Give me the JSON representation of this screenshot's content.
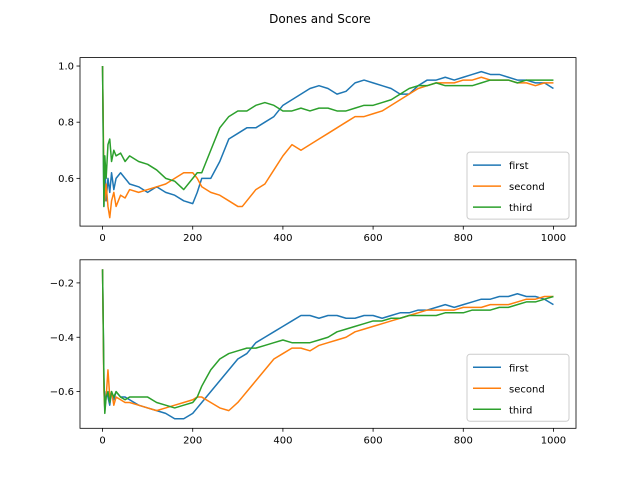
{
  "figure": {
    "suptitle": "Dones and Score",
    "colors": {
      "first": "#1f77b4",
      "second": "#ff7f0e",
      "third": "#2ca02c"
    }
  },
  "chart_data": [
    {
      "type": "line",
      "title": "",
      "xlabel": "",
      "ylabel": "",
      "xlim": [
        -50,
        1050
      ],
      "ylim": [
        0.43,
        1.03
      ],
      "xticks": [
        0,
        200,
        400,
        600,
        800,
        1000
      ],
      "yticks": [
        0.6,
        0.8,
        1.0
      ],
      "xtick_labels": [
        "0",
        "200",
        "400",
        "600",
        "800",
        "1000"
      ],
      "ytick_labels": [
        "0.6",
        "0.8",
        "1.0"
      ],
      "grid": false,
      "legend": "lower-right",
      "series": [
        {
          "name": "first",
          "color": "#1f77b4",
          "x": [
            0,
            3,
            5,
            8,
            12,
            16,
            20,
            25,
            30,
            40,
            50,
            60,
            80,
            100,
            120,
            140,
            160,
            180,
            200,
            210,
            220,
            240,
            260,
            280,
            300,
            320,
            340,
            360,
            380,
            400,
            420,
            440,
            460,
            480,
            500,
            520,
            540,
            560,
            580,
            600,
            620,
            640,
            660,
            680,
            700,
            720,
            740,
            760,
            780,
            800,
            820,
            840,
            860,
            880,
            900,
            920,
            940,
            960,
            980,
            1000
          ],
          "y": [
            1.0,
            0.5,
            0.66,
            0.52,
            0.6,
            0.55,
            0.62,
            0.56,
            0.6,
            0.62,
            0.6,
            0.58,
            0.57,
            0.55,
            0.57,
            0.55,
            0.54,
            0.52,
            0.51,
            0.55,
            0.6,
            0.6,
            0.66,
            0.74,
            0.76,
            0.78,
            0.78,
            0.8,
            0.82,
            0.86,
            0.88,
            0.9,
            0.92,
            0.93,
            0.92,
            0.9,
            0.91,
            0.94,
            0.95,
            0.94,
            0.93,
            0.92,
            0.9,
            0.9,
            0.93,
            0.95,
            0.95,
            0.96,
            0.95,
            0.96,
            0.97,
            0.98,
            0.97,
            0.97,
            0.96,
            0.95,
            0.95,
            0.94,
            0.94,
            0.92
          ]
        },
        {
          "name": "second",
          "color": "#ff7f0e",
          "x": [
            0,
            3,
            5,
            8,
            12,
            16,
            20,
            25,
            30,
            40,
            50,
            60,
            80,
            100,
            120,
            140,
            160,
            180,
            200,
            210,
            220,
            240,
            260,
            280,
            300,
            310,
            320,
            340,
            360,
            380,
            400,
            420,
            440,
            460,
            480,
            500,
            520,
            540,
            560,
            580,
            600,
            620,
            640,
            660,
            680,
            700,
            720,
            740,
            760,
            780,
            800,
            820,
            840,
            860,
            880,
            900,
            920,
            940,
            960,
            980,
            1000
          ],
          "y": [
            1.0,
            0.6,
            0.52,
            0.58,
            0.5,
            0.46,
            0.52,
            0.55,
            0.5,
            0.54,
            0.53,
            0.56,
            0.55,
            0.56,
            0.57,
            0.58,
            0.6,
            0.62,
            0.62,
            0.6,
            0.57,
            0.55,
            0.54,
            0.52,
            0.5,
            0.5,
            0.52,
            0.56,
            0.58,
            0.63,
            0.68,
            0.72,
            0.7,
            0.72,
            0.74,
            0.76,
            0.78,
            0.8,
            0.82,
            0.82,
            0.83,
            0.84,
            0.86,
            0.88,
            0.9,
            0.92,
            0.93,
            0.94,
            0.94,
            0.94,
            0.95,
            0.95,
            0.96,
            0.95,
            0.95,
            0.95,
            0.94,
            0.94,
            0.93,
            0.94,
            0.94
          ]
        },
        {
          "name": "third",
          "color": "#2ca02c",
          "x": [
            0,
            3,
            5,
            8,
            12,
            16,
            20,
            25,
            30,
            40,
            50,
            60,
            80,
            100,
            120,
            140,
            160,
            180,
            200,
            210,
            220,
            230,
            240,
            260,
            280,
            300,
            320,
            340,
            360,
            380,
            400,
            420,
            440,
            460,
            480,
            500,
            520,
            540,
            560,
            580,
            600,
            620,
            640,
            660,
            680,
            700,
            720,
            740,
            760,
            780,
            800,
            820,
            840,
            860,
            880,
            900,
            920,
            940,
            960,
            980,
            1000
          ],
          "y": [
            1.0,
            0.5,
            0.68,
            0.6,
            0.72,
            0.74,
            0.66,
            0.7,
            0.68,
            0.69,
            0.66,
            0.68,
            0.66,
            0.65,
            0.63,
            0.6,
            0.59,
            0.56,
            0.6,
            0.62,
            0.62,
            0.66,
            0.7,
            0.78,
            0.82,
            0.84,
            0.84,
            0.86,
            0.87,
            0.86,
            0.84,
            0.84,
            0.85,
            0.84,
            0.85,
            0.85,
            0.84,
            0.84,
            0.85,
            0.86,
            0.86,
            0.87,
            0.88,
            0.9,
            0.92,
            0.93,
            0.93,
            0.94,
            0.93,
            0.93,
            0.93,
            0.93,
            0.94,
            0.95,
            0.95,
            0.95,
            0.94,
            0.95,
            0.95,
            0.95,
            0.95
          ]
        }
      ]
    },
    {
      "type": "line",
      "title": "",
      "xlabel": "",
      "ylabel": "",
      "xlim": [
        -50,
        1050
      ],
      "ylim": [
        -0.735,
        -0.115
      ],
      "xticks": [
        0,
        200,
        400,
        600,
        800,
        1000
      ],
      "yticks": [
        -0.6,
        -0.4,
        -0.2
      ],
      "xtick_labels": [
        "0",
        "200",
        "400",
        "600",
        "800",
        "1000"
      ],
      "ytick_labels": [
        "−0.6",
        "−0.4",
        "−0.2"
      ],
      "grid": false,
      "legend": "lower-right",
      "series": [
        {
          "name": "first",
          "color": "#1f77b4",
          "x": [
            0,
            3,
            5,
            8,
            12,
            16,
            20,
            25,
            30,
            40,
            50,
            60,
            80,
            100,
            120,
            140,
            160,
            180,
            200,
            210,
            220,
            240,
            260,
            280,
            300,
            320,
            340,
            360,
            380,
            400,
            420,
            440,
            460,
            480,
            500,
            520,
            540,
            560,
            580,
            600,
            620,
            640,
            660,
            680,
            700,
            720,
            740,
            760,
            780,
            800,
            820,
            840,
            860,
            880,
            900,
            920,
            940,
            960,
            980,
            1000
          ],
          "y": [
            -0.15,
            -0.55,
            -0.67,
            -0.6,
            -0.62,
            -0.65,
            -0.6,
            -0.63,
            -0.6,
            -0.62,
            -0.62,
            -0.63,
            -0.65,
            -0.66,
            -0.67,
            -0.68,
            -0.7,
            -0.7,
            -0.68,
            -0.66,
            -0.64,
            -0.6,
            -0.56,
            -0.52,
            -0.48,
            -0.46,
            -0.42,
            -0.4,
            -0.38,
            -0.36,
            -0.34,
            -0.32,
            -0.32,
            -0.33,
            -0.32,
            -0.32,
            -0.33,
            -0.33,
            -0.32,
            -0.32,
            -0.33,
            -0.32,
            -0.31,
            -0.31,
            -0.3,
            -0.3,
            -0.29,
            -0.28,
            -0.29,
            -0.28,
            -0.27,
            -0.26,
            -0.26,
            -0.25,
            -0.25,
            -0.24,
            -0.25,
            -0.25,
            -0.26,
            -0.28
          ]
        },
        {
          "name": "second",
          "color": "#ff7f0e",
          "x": [
            0,
            3,
            5,
            8,
            12,
            16,
            20,
            25,
            30,
            40,
            50,
            60,
            80,
            100,
            120,
            140,
            160,
            180,
            200,
            210,
            220,
            240,
            260,
            280,
            300,
            310,
            320,
            340,
            360,
            380,
            400,
            420,
            440,
            460,
            480,
            500,
            520,
            540,
            560,
            580,
            600,
            620,
            640,
            660,
            680,
            700,
            720,
            740,
            760,
            780,
            800,
            820,
            840,
            860,
            880,
            900,
            920,
            940,
            960,
            980,
            1000
          ],
          "y": [
            -0.15,
            -0.6,
            -0.66,
            -0.62,
            -0.52,
            -0.62,
            -0.6,
            -0.65,
            -0.62,
            -0.63,
            -0.64,
            -0.64,
            -0.65,
            -0.66,
            -0.67,
            -0.66,
            -0.65,
            -0.64,
            -0.63,
            -0.62,
            -0.62,
            -0.64,
            -0.66,
            -0.67,
            -0.64,
            -0.62,
            -0.6,
            -0.56,
            -0.52,
            -0.48,
            -0.46,
            -0.44,
            -0.44,
            -0.45,
            -0.43,
            -0.42,
            -0.41,
            -0.4,
            -0.38,
            -0.37,
            -0.36,
            -0.35,
            -0.34,
            -0.33,
            -0.32,
            -0.31,
            -0.3,
            -0.3,
            -0.3,
            -0.3,
            -0.29,
            -0.29,
            -0.29,
            -0.28,
            -0.28,
            -0.28,
            -0.27,
            -0.26,
            -0.26,
            -0.25,
            -0.25
          ]
        },
        {
          "name": "third",
          "color": "#2ca02c",
          "x": [
            0,
            3,
            5,
            8,
            12,
            16,
            20,
            25,
            30,
            40,
            50,
            60,
            80,
            100,
            120,
            140,
            160,
            180,
            200,
            210,
            220,
            230,
            240,
            260,
            280,
            300,
            320,
            340,
            360,
            380,
            400,
            420,
            440,
            460,
            480,
            500,
            520,
            540,
            560,
            580,
            600,
            620,
            640,
            660,
            680,
            700,
            720,
            740,
            760,
            780,
            800,
            820,
            840,
            860,
            880,
            900,
            920,
            940,
            960,
            980,
            1000
          ],
          "y": [
            -0.15,
            -0.55,
            -0.68,
            -0.62,
            -0.6,
            -0.64,
            -0.6,
            -0.62,
            -0.6,
            -0.62,
            -0.63,
            -0.62,
            -0.62,
            -0.62,
            -0.64,
            -0.65,
            -0.66,
            -0.65,
            -0.64,
            -0.62,
            -0.58,
            -0.55,
            -0.52,
            -0.48,
            -0.46,
            -0.45,
            -0.44,
            -0.44,
            -0.43,
            -0.42,
            -0.41,
            -0.42,
            -0.42,
            -0.42,
            -0.41,
            -0.4,
            -0.38,
            -0.37,
            -0.36,
            -0.35,
            -0.34,
            -0.34,
            -0.33,
            -0.33,
            -0.32,
            -0.32,
            -0.32,
            -0.32,
            -0.31,
            -0.31,
            -0.31,
            -0.3,
            -0.3,
            -0.3,
            -0.29,
            -0.29,
            -0.28,
            -0.27,
            -0.27,
            -0.26,
            -0.25
          ]
        }
      ]
    }
  ]
}
